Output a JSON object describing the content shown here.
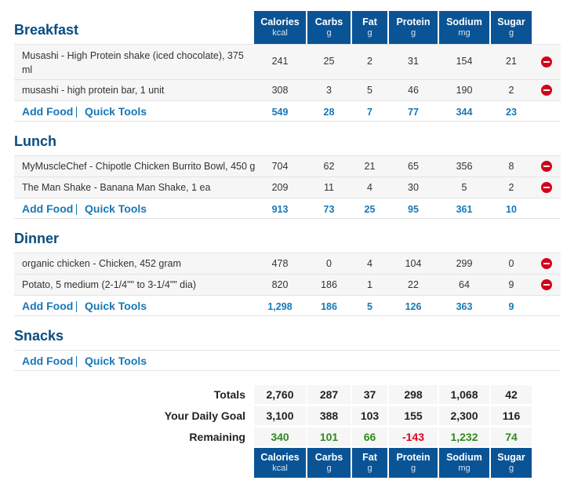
{
  "columns": [
    {
      "name": "Calories",
      "unit": "kcal"
    },
    {
      "name": "Carbs",
      "unit": "g"
    },
    {
      "name": "Fat",
      "unit": "g"
    },
    {
      "name": "Protein",
      "unit": "g"
    },
    {
      "name": "Sodium",
      "unit": "mg"
    },
    {
      "name": "Sugar",
      "unit": "g"
    }
  ],
  "links": {
    "add_food": "Add Food",
    "quick_tools": "Quick Tools"
  },
  "meals": [
    {
      "title": "Breakfast",
      "foods": [
        {
          "name": "Musashi - High Protein shake (iced chocolate), 375 ml",
          "line1": "Musashi - High Protein shake (iced chocolate), 375",
          "line2": "ml",
          "values": [
            "241",
            "25",
            "2",
            "31",
            "154",
            "21"
          ]
        },
        {
          "name": "musashi - high protein bar, 1 unit",
          "values": [
            "308",
            "3",
            "5",
            "46",
            "190",
            "2"
          ]
        }
      ],
      "totals": [
        "549",
        "28",
        "7",
        "77",
        "344",
        "23"
      ]
    },
    {
      "title": "Lunch",
      "foods": [
        {
          "name": "MyMuscleChef - Chipotle Chicken Burrito Bowl, 450 g",
          "values": [
            "704",
            "62",
            "21",
            "65",
            "356",
            "8"
          ]
        },
        {
          "name": "The Man Shake - Banana Man Shake, 1 ea",
          "values": [
            "209",
            "11",
            "4",
            "30",
            "5",
            "2"
          ]
        }
      ],
      "totals": [
        "913",
        "73",
        "25",
        "95",
        "361",
        "10"
      ]
    },
    {
      "title": "Dinner",
      "foods": [
        {
          "name": "organic chicken - Chicken, 452 gram",
          "values": [
            "478",
            "0",
            "4",
            "104",
            "299",
            "0"
          ]
        },
        {
          "name": "Potato, 5 medium (2-1/4\"\" to 3-1/4\"\" dia)",
          "values": [
            "820",
            "186",
            "1",
            "22",
            "64",
            "9"
          ]
        }
      ],
      "totals": [
        "1,298",
        "186",
        "5",
        "126",
        "363",
        "9"
      ]
    },
    {
      "title": "Snacks",
      "foods": [],
      "totals": []
    }
  ],
  "summary": {
    "totals_label": "Totals",
    "totals": [
      "2,760",
      "287",
      "37",
      "298",
      "1,068",
      "42"
    ],
    "goal_label": "Your Daily Goal",
    "goal": [
      "3,100",
      "388",
      "103",
      "155",
      "2,300",
      "116"
    ],
    "remaining_label": "Remaining",
    "remaining": [
      "340",
      "101",
      "66",
      "-143",
      "1,232",
      "74"
    ]
  },
  "colors": {
    "header_bg": "#0a5496",
    "link": "#1778b6",
    "delete": "#d0021b",
    "positive": "#2f8a1f",
    "negative": "#e0001b"
  }
}
